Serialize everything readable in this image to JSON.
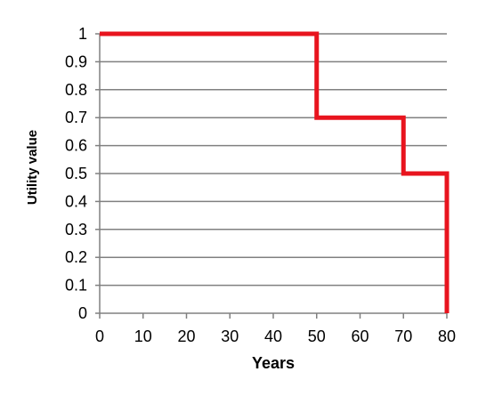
{
  "chart_data": {
    "type": "line",
    "step": true,
    "xlabel": "Years",
    "ylabel": "Utility value",
    "xlim": [
      0,
      80
    ],
    "ylim": [
      0,
      1
    ],
    "x_ticks": [
      "0",
      "10",
      "20",
      "30",
      "40",
      "50",
      "60",
      "70",
      "80"
    ],
    "y_ticks": [
      "0",
      "0.1",
      "0.2",
      "0.3",
      "0.4",
      "0.5",
      "0.6",
      "0.7",
      "0.8",
      "0.9",
      "1"
    ],
    "grid": true,
    "legend": "none",
    "series": [
      {
        "color": "#e8141e",
        "points": [
          {
            "x": 0,
            "y": 1
          },
          {
            "x": 50,
            "y": 1
          },
          {
            "x": 50,
            "y": 0.7
          },
          {
            "x": 70,
            "y": 0.7
          },
          {
            "x": 70,
            "y": 0.5
          },
          {
            "x": 80,
            "y": 0.5
          },
          {
            "x": 80,
            "y": 0
          }
        ]
      }
    ],
    "colors": {
      "grid": "#808080",
      "axis": "#808080"
    }
  }
}
